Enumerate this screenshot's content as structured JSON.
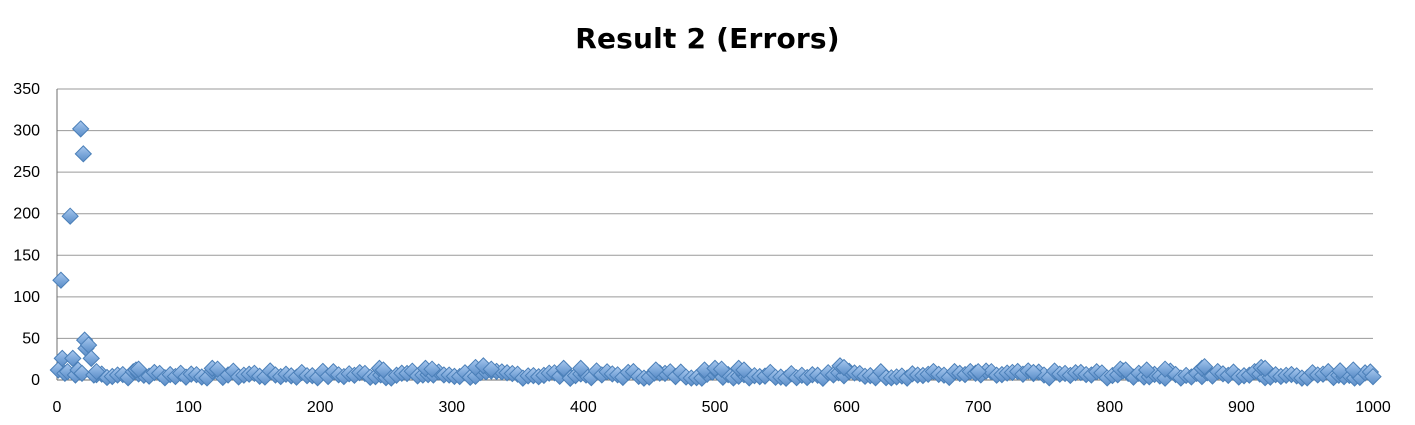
{
  "chart_data": {
    "type": "scatter",
    "title": "Result 2 (Errors)",
    "xlabel": "",
    "ylabel": "",
    "xlim": [
      0,
      1000
    ],
    "ylim": [
      0,
      350
    ],
    "x_ticks": [
      0,
      100,
      200,
      300,
      400,
      500,
      600,
      700,
      800,
      900,
      1000
    ],
    "y_ticks": [
      0,
      50,
      100,
      150,
      200,
      250,
      300,
      350
    ],
    "grid": "horizontal",
    "legend": "none",
    "marker": "diamond",
    "marker_color": "#7aa6d9",
    "series": [
      {
        "points": [
          [
            1,
            12
          ],
          [
            3,
            120
          ],
          [
            4,
            26
          ],
          [
            6,
            8
          ],
          [
            8,
            10
          ],
          [
            10,
            197
          ],
          [
            12,
            26
          ],
          [
            14,
            6
          ],
          [
            16,
            12
          ],
          [
            18,
            302
          ],
          [
            19,
            8
          ],
          [
            20,
            272
          ],
          [
            21,
            48
          ],
          [
            22,
            38
          ],
          [
            24,
            42
          ],
          [
            26,
            26
          ],
          [
            28,
            6
          ],
          [
            30,
            10
          ],
          [
            60,
            12
          ],
          [
            62,
            13
          ],
          [
            118,
            14
          ],
          [
            122,
            13
          ],
          [
            245,
            14
          ],
          [
            248,
            12
          ],
          [
            280,
            14
          ],
          [
            285,
            13
          ],
          [
            318,
            15
          ],
          [
            324,
            17
          ],
          [
            330,
            13
          ],
          [
            385,
            14
          ],
          [
            398,
            14
          ],
          [
            455,
            12
          ],
          [
            492,
            12
          ],
          [
            500,
            14
          ],
          [
            505,
            13
          ],
          [
            518,
            14
          ],
          [
            522,
            12
          ],
          [
            595,
            17
          ],
          [
            598,
            15
          ],
          [
            700,
            10
          ],
          [
            742,
            9
          ],
          [
            808,
            13
          ],
          [
            812,
            12
          ],
          [
            828,
            12
          ],
          [
            842,
            13
          ],
          [
            870,
            14
          ],
          [
            872,
            16
          ],
          [
            915,
            15
          ],
          [
            918,
            14
          ],
          [
            975,
            11
          ],
          [
            985,
            12
          ],
          [
            1000,
            4
          ]
        ],
        "baseline": {
          "x_range": [
            30,
            1000
          ],
          "step": 4,
          "y_min": 2,
          "y_max": 11
        }
      }
    ]
  }
}
